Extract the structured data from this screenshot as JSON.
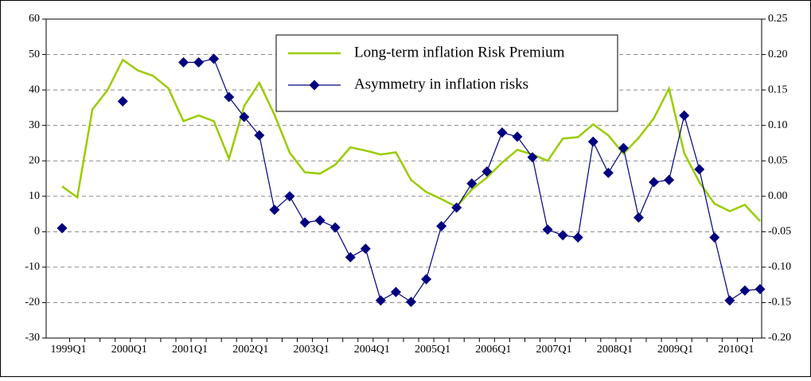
{
  "chart_data": {
    "type": "line",
    "categories": [
      "1999Q1",
      null,
      null,
      null,
      "2000Q1",
      null,
      null,
      null,
      "2001Q1",
      null,
      null,
      null,
      "2002Q1",
      null,
      null,
      null,
      "2003Q1",
      null,
      null,
      null,
      "2004Q1",
      null,
      null,
      null,
      "2005Q1",
      null,
      null,
      null,
      "2006Q1",
      null,
      null,
      null,
      "2007Q1",
      null,
      null,
      null,
      "2008Q1",
      null,
      null,
      null,
      "2009Q1",
      null,
      null,
      null,
      "2010Q1",
      null,
      null
    ],
    "series": [
      {
        "name": "Long-term inflation Risk Premium",
        "color": "#99cc00",
        "values": [
          12.8,
          9.7,
          34.5,
          40,
          48.5,
          45.5,
          44,
          40.5,
          31.2,
          32.8,
          31.2,
          20.6,
          35.5,
          42,
          33,
          22.3,
          16.8,
          16.4,
          18.9,
          23.8,
          22.9,
          21.8,
          22.4,
          14.6,
          11.2,
          9.2,
          7,
          11.9,
          15.3,
          19.5,
          23.1,
          21.8,
          20,
          26.3,
          26.7,
          30.3,
          27.2,
          22,
          26.5,
          32,
          40.4,
          22.2,
          14,
          7.9,
          5.8,
          7.6,
          3.0
        ]
      },
      {
        "name": "Asymmetry in inflation risks",
        "color": "#000080",
        "axis": "y2",
        "marker": "diamond",
        "values": [
          -0.045,
          null,
          null,
          null,
          0.134,
          null,
          null,
          null,
          0.189,
          0.189,
          0.194,
          0.14,
          0.112,
          0.086,
          -0.019,
          0.0,
          -0.037,
          -0.034,
          -0.044,
          -0.086,
          -0.074,
          -0.147,
          -0.135,
          -0.149,
          -0.117,
          -0.042,
          -0.016,
          0.018,
          0.035,
          0.09,
          0.084,
          0.055,
          -0.047,
          -0.055,
          -0.058,
          0.077,
          0.033,
          0.068,
          -0.03,
          0.02,
          0.023,
          0.114,
          0.038,
          -0.058,
          -0.147,
          -0.133,
          -0.131
        ]
      }
    ],
    "ylim": [
      -30,
      60
    ],
    "yticks": [
      -30,
      -20,
      -10,
      0,
      10,
      20,
      30,
      40,
      50,
      60
    ],
    "y2lim": [
      -0.2,
      0.25
    ],
    "y2ticks": [
      {
        "value": -0.2,
        "label": "-0.20"
      },
      {
        "value": -0.15,
        "label": "-0.15"
      },
      {
        "value": -0.1,
        "label": "-0.10"
      },
      {
        "value": -0.05,
        "label": "-0.05"
      },
      {
        "value": 0,
        "label": "0.00"
      },
      {
        "value": 0.05,
        "label": "0.05"
      },
      {
        "value": 0.1,
        "label": "0.10"
      },
      {
        "value": 0.15,
        "label": "0.15"
      },
      {
        "value": 0.2,
        "label": "0.20"
      },
      {
        "value": 0.25,
        "label": "0.25"
      }
    ],
    "grid": true,
    "legend": "top"
  }
}
